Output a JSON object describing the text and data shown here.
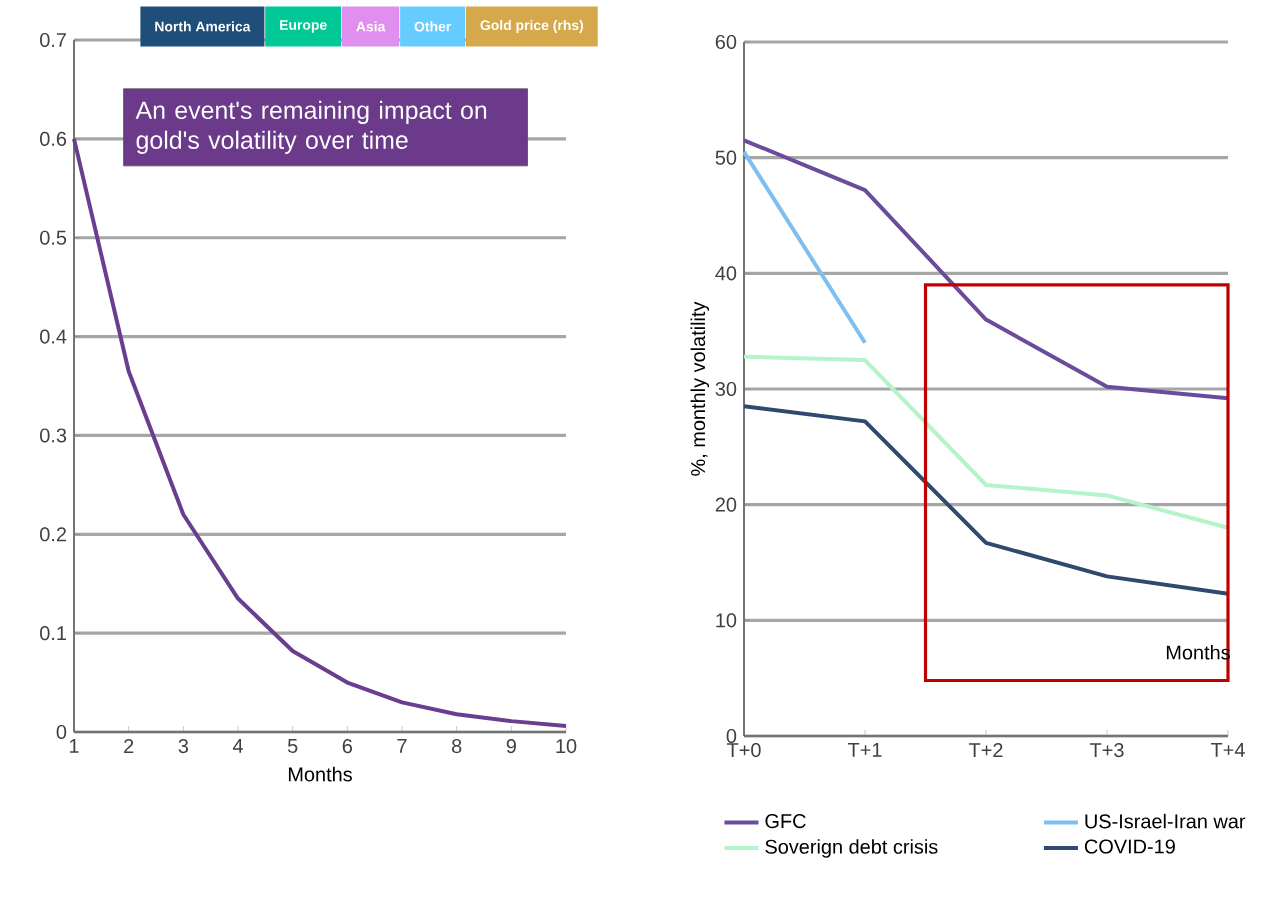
{
  "chart_data": [
    {
      "type": "line",
      "title": "An event's remaining impact on gold's volatility over time",
      "xlabel": "Months",
      "annotations": [
        "North America",
        "Europe",
        "Asia",
        "Other",
        "Gold price (rhs)"
      ],
      "x": [
        1,
        2,
        3,
        4,
        5,
        6,
        7,
        8,
        9,
        10
      ],
      "series": [
        {
          "color": "#6a3d8f",
          "values": [
            0.6,
            0.365,
            0.22,
            0.135,
            0.082,
            0.05,
            0.03,
            0.018,
            0.011,
            0.006
          ]
        }
      ],
      "xlim": [
        1,
        10
      ],
      "xticks": [
        1,
        2,
        3,
        4,
        5,
        6,
        7,
        8,
        9,
        10
      ],
      "ylim": [
        0,
        0.7
      ],
      "yticks": [
        0,
        0.1,
        0.2,
        0.3,
        0.4,
        0.5,
        0.6,
        0.7
      ],
      "grid": "y",
      "marker": "none",
      "line_style": "solid"
    },
    {
      "type": "line",
      "xlabel": "Months",
      "ylabel": "%, monthly volatility",
      "categories": [
        "T+0",
        "T+1",
        "T+2",
        "T+3",
        "T+4"
      ],
      "series": [
        {
          "name": "GFC",
          "color": "#6b4c9a",
          "values": [
            51.5,
            47.2,
            36,
            30.2,
            29.2
          ]
        },
        {
          "name": "US-Israel-Iran war",
          "color": "#7fbfef",
          "values": [
            50.5,
            34,
            null,
            null,
            null
          ]
        },
        {
          "name": "Soverign debt crisis",
          "color": "#b5f3c9",
          "values": [
            32.8,
            32.5,
            21.7,
            20.8,
            18
          ]
        },
        {
          "name": "COVID-19",
          "color": "#2e4a6e",
          "values": [
            28.5,
            27.2,
            16.7,
            13.8,
            12.3
          ]
        }
      ],
      "ylim": [
        0,
        60
      ],
      "yticks": [
        0,
        10,
        20,
        30,
        40,
        50,
        60
      ],
      "grid": "y",
      "legend": "bottom",
      "marker": "none",
      "line_style": "solid"
    }
  ]
}
